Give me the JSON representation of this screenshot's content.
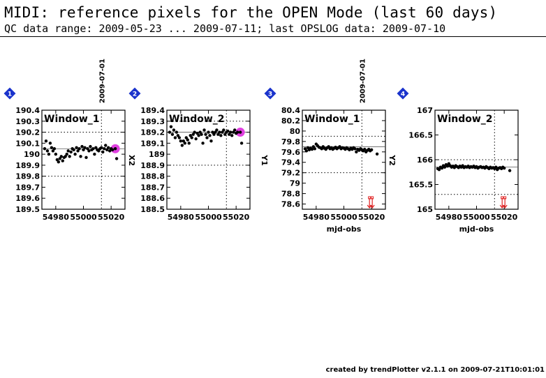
{
  "header": {
    "title": "MIDI: reference pixels for the OPEN Mode (last 60 days)",
    "subtitle": "QC data range: 2009-05-23 ... 2009-07-11; last OPSLOG data: 2009-07-10"
  },
  "footer": {
    "text": "created by trendPlotter v2.1.1 on 2009-07-21T10:01:01"
  },
  "colors": {
    "point": "#000000",
    "highlight": "#e040e0",
    "badge": "#1a33cc",
    "arrow": "#e02020",
    "grid": "#000000"
  },
  "chart_data": [
    {
      "type": "scatter",
      "panel_number": "1",
      "label": "Window_1",
      "ylabel": "X2",
      "xlabel": "",
      "date_marker": {
        "x": 55013,
        "label": "2009-07-01"
      },
      "xlim": [
        54970,
        55030
      ],
      "ylim": [
        189.5,
        190.4
      ],
      "xticks": [
        54980,
        55000,
        55020
      ],
      "yticks": [
        189.5,
        189.6,
        189.7,
        189.8,
        189.9,
        190,
        190.1,
        190.2,
        190.3,
        190.4
      ],
      "ref_lines": [
        190.2,
        189.8
      ],
      "center_line": 190.05,
      "highlight": {
        "x": 55023,
        "y": 190.05
      },
      "out_of_range": [],
      "points": [
        [
          54972,
          190.05
        ],
        [
          54973,
          190.12
        ],
        [
          54974,
          190.03
        ],
        [
          54975,
          190.0
        ],
        [
          54976,
          190.1
        ],
        [
          54977,
          190.06
        ],
        [
          54978,
          190.03
        ],
        [
          54979,
          190.05
        ],
        [
          54980,
          190.0
        ],
        [
          54981,
          189.95
        ],
        [
          54982,
          189.93
        ],
        [
          54983,
          189.96
        ],
        [
          54984,
          189.98
        ],
        [
          54985,
          189.94
        ],
        [
          54986,
          189.97
        ],
        [
          54987,
          189.98
        ],
        [
          54988,
          190.0
        ],
        [
          54989,
          190.03
        ],
        [
          54990,
          189.98
        ],
        [
          54991,
          190.02
        ],
        [
          54992,
          190.05
        ],
        [
          54993,
          190.04
        ],
        [
          54994,
          190.0
        ],
        [
          54995,
          190.06
        ],
        [
          54996,
          190.03
        ],
        [
          54997,
          190.05
        ],
        [
          54998,
          189.98
        ],
        [
          54999,
          190.07
        ],
        [
          55000,
          190.04
        ],
        [
          55001,
          190.06
        ],
        [
          55002,
          189.97
        ],
        [
          55003,
          190.05
        ],
        [
          55004,
          190.03
        ],
        [
          55005,
          190.07
        ],
        [
          55006,
          190.04
        ],
        [
          55007,
          190.05
        ],
        [
          55008,
          190.0
        ],
        [
          55009,
          190.06
        ],
        [
          55010,
          190.04
        ],
        [
          55011,
          190.03
        ],
        [
          55012,
          190.05
        ],
        [
          55013,
          190.06
        ],
        [
          55014,
          190.02
        ],
        [
          55015,
          190.05
        ],
        [
          55016,
          190.08
        ],
        [
          55017,
          190.04
        ],
        [
          55018,
          190.06
        ],
        [
          55019,
          190.03
        ],
        [
          55020,
          190.05
        ],
        [
          55021,
          190.04
        ],
        [
          55023,
          190.05
        ],
        [
          55024,
          189.96
        ]
      ]
    },
    {
      "type": "scatter",
      "panel_number": "2",
      "label": "Window_2",
      "ylabel": "",
      "xlabel": "",
      "date_marker": null,
      "xlim": [
        54970,
        55030
      ],
      "ylim": [
        188.5,
        189.4
      ],
      "xticks": [
        54980,
        55000,
        55020
      ],
      "yticks": [
        188.5,
        188.6,
        188.7,
        188.8,
        188.9,
        189,
        189.1,
        189.2,
        189.3,
        189.4
      ],
      "ref_lines": [
        189.3,
        188.9
      ],
      "center_line": 189.2,
      "highlight": {
        "x": 55023,
        "y": 189.2
      },
      "out_of_range": [],
      "points": [
        [
          54972,
          189.2
        ],
        [
          54973,
          189.25
        ],
        [
          54974,
          189.18
        ],
        [
          54975,
          189.22
        ],
        [
          54976,
          189.15
        ],
        [
          54977,
          189.2
        ],
        [
          54978,
          189.17
        ],
        [
          54979,
          189.15
        ],
        [
          54980,
          189.12
        ],
        [
          54981,
          189.08
        ],
        [
          54982,
          189.12
        ],
        [
          54983,
          189.1
        ],
        [
          54984,
          189.15
        ],
        [
          54985,
          189.13
        ],
        [
          54986,
          189.1
        ],
        [
          54987,
          189.17
        ],
        [
          54988,
          189.15
        ],
        [
          54989,
          189.18
        ],
        [
          54990,
          189.2
        ],
        [
          54991,
          189.14
        ],
        [
          54992,
          189.19
        ],
        [
          54993,
          189.17
        ],
        [
          54994,
          189.2
        ],
        [
          54995,
          189.18
        ],
        [
          54996,
          189.1
        ],
        [
          54997,
          189.22
        ],
        [
          54998,
          189.18
        ],
        [
          54999,
          189.15
        ],
        [
          55000,
          189.2
        ],
        [
          55001,
          189.17
        ],
        [
          55002,
          189.12
        ],
        [
          55003,
          189.2
        ],
        [
          55004,
          189.18
        ],
        [
          55005,
          189.2
        ],
        [
          55006,
          189.22
        ],
        [
          55007,
          189.18
        ],
        [
          55008,
          189.2
        ],
        [
          55009,
          189.17
        ],
        [
          55010,
          189.2
        ],
        [
          55011,
          189.22
        ],
        [
          55012,
          189.18
        ],
        [
          55013,
          189.2
        ],
        [
          55014,
          189.21
        ],
        [
          55015,
          189.18
        ],
        [
          55016,
          189.2
        ],
        [
          55017,
          189.17
        ],
        [
          55018,
          189.2
        ],
        [
          55019,
          189.22
        ],
        [
          55020,
          189.19
        ],
        [
          55021,
          189.2
        ],
        [
          55023,
          189.2
        ],
        [
          55024,
          189.1
        ]
      ]
    },
    {
      "type": "scatter",
      "panel_number": "3",
      "label": "Window_1",
      "ylabel": "Y2",
      "ylabel_left": "Y1",
      "xlabel": "mjd-obs",
      "date_marker": {
        "x": 55013,
        "label": "2009-07-01"
      },
      "xlim": [
        54970,
        55030
      ],
      "ylim": [
        78.5,
        80.4
      ],
      "xticks": [
        54980,
        55000,
        55020
      ],
      "yticks": [
        78.6,
        78.8,
        79,
        79.2,
        79.4,
        79.6,
        79.8,
        80,
        80.2,
        80.4
      ],
      "ref_lines": [
        79.9,
        79.2
      ],
      "center_line": 79.7,
      "highlight": null,
      "out_of_range": [
        {
          "x": 55019,
          "y": 78.6
        },
        {
          "x": 55020,
          "y": 78.6
        }
      ],
      "points": [
        [
          54972,
          79.66
        ],
        [
          54973,
          79.62
        ],
        [
          54974,
          79.68
        ],
        [
          54975,
          79.64
        ],
        [
          54976,
          79.67
        ],
        [
          54977,
          79.65
        ],
        [
          54978,
          79.7
        ],
        [
          54979,
          79.66
        ],
        [
          54980,
          79.75
        ],
        [
          54981,
          79.72
        ],
        [
          54982,
          79.69
        ],
        [
          54983,
          79.68
        ],
        [
          54984,
          79.66
        ],
        [
          54985,
          79.7
        ],
        [
          54986,
          79.67
        ],
        [
          54987,
          79.65
        ],
        [
          54988,
          79.68
        ],
        [
          54989,
          79.7
        ],
        [
          54990,
          79.66
        ],
        [
          54991,
          79.68
        ],
        [
          54992,
          79.65
        ],
        [
          54993,
          79.67
        ],
        [
          54994,
          79.69
        ],
        [
          54995,
          79.66
        ],
        [
          54996,
          79.68
        ],
        [
          54997,
          79.7
        ],
        [
          54998,
          79.66
        ],
        [
          54999,
          79.68
        ],
        [
          55000,
          79.67
        ],
        [
          55001,
          79.65
        ],
        [
          55002,
          79.68
        ],
        [
          55003,
          79.66
        ],
        [
          55004,
          79.64
        ],
        [
          55005,
          79.67
        ],
        [
          55006,
          79.65
        ],
        [
          55007,
          79.68
        ],
        [
          55008,
          79.66
        ],
        [
          55009,
          79.6
        ],
        [
          55010,
          79.65
        ],
        [
          55011,
          79.63
        ],
        [
          55012,
          79.66
        ],
        [
          55013,
          79.64
        ],
        [
          55014,
          79.62
        ],
        [
          55015,
          79.65
        ],
        [
          55016,
          79.6
        ],
        [
          55017,
          79.63
        ],
        [
          55018,
          79.65
        ],
        [
          55019,
          79.62
        ],
        [
          55020,
          79.64
        ],
        [
          55024,
          79.56
        ]
      ]
    },
    {
      "type": "scatter",
      "panel_number": "4",
      "label": "Window_2",
      "ylabel": "",
      "xlabel": "mjd-obs",
      "date_marker": null,
      "xlim": [
        54970,
        55030
      ],
      "ylim": [
        165,
        167
      ],
      "xticks": [
        54980,
        55000,
        55020
      ],
      "yticks": [
        165,
        165.5,
        166,
        166.5,
        167
      ],
      "ref_lines": [
        166,
        165.3
      ],
      "center_line": 165.85,
      "highlight": null,
      "out_of_range": [
        {
          "x": 55019,
          "y": 165.05
        },
        {
          "x": 55020,
          "y": 165.05
        }
      ],
      "points": [
        [
          54972,
          165.82
        ],
        [
          54973,
          165.8
        ],
        [
          54974,
          165.85
        ],
        [
          54975,
          165.83
        ],
        [
          54976,
          165.88
        ],
        [
          54977,
          165.85
        ],
        [
          54978,
          165.9
        ],
        [
          54979,
          165.87
        ],
        [
          54980,
          165.92
        ],
        [
          54981,
          165.88
        ],
        [
          54982,
          165.85
        ],
        [
          54983,
          165.87
        ],
        [
          54984,
          165.84
        ],
        [
          54985,
          165.88
        ],
        [
          54986,
          165.86
        ],
        [
          54987,
          165.84
        ],
        [
          54988,
          165.87
        ],
        [
          54989,
          165.85
        ],
        [
          54990,
          165.88
        ],
        [
          54991,
          165.84
        ],
        [
          54992,
          165.86
        ],
        [
          54993,
          165.85
        ],
        [
          54994,
          165.87
        ],
        [
          54995,
          165.84
        ],
        [
          54996,
          165.86
        ],
        [
          54997,
          165.85
        ],
        [
          54998,
          165.87
        ],
        [
          54999,
          165.84
        ],
        [
          55000,
          165.86
        ],
        [
          55001,
          165.83
        ],
        [
          55002,
          165.85
        ],
        [
          55003,
          165.86
        ],
        [
          55004,
          165.84
        ],
        [
          55005,
          165.85
        ],
        [
          55006,
          165.83
        ],
        [
          55007,
          165.86
        ],
        [
          55008,
          165.84
        ],
        [
          55009,
          165.82
        ],
        [
          55010,
          165.85
        ],
        [
          55011,
          165.83
        ],
        [
          55012,
          165.84
        ],
        [
          55013,
          165.82
        ],
        [
          55014,
          165.85
        ],
        [
          55015,
          165.8
        ],
        [
          55016,
          165.83
        ],
        [
          55017,
          165.84
        ],
        [
          55018,
          165.82
        ],
        [
          55019,
          165.85
        ],
        [
          55020,
          165.83
        ],
        [
          55024,
          165.78
        ]
      ]
    }
  ]
}
